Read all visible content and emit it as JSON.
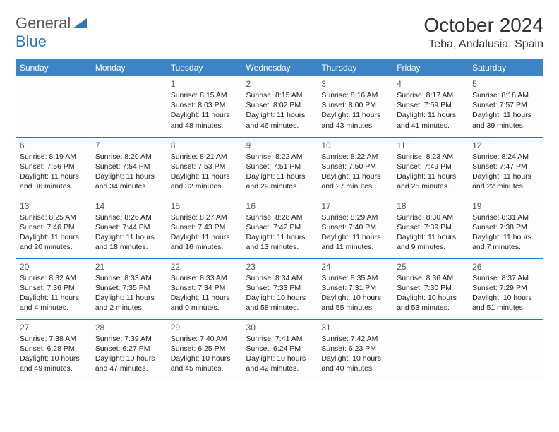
{
  "brand": {
    "part1": "General",
    "part2": "Blue"
  },
  "title": "October 2024",
  "location": "Teba, Andalusia, Spain",
  "colors": {
    "header_bg": "#3c84c6",
    "header_text": "#ffffff",
    "rule": "#2f77b8",
    "brand_gray": "#5a5a5a",
    "brand_blue": "#2f77b8"
  },
  "dayNames": [
    "Sunday",
    "Monday",
    "Tuesday",
    "Wednesday",
    "Thursday",
    "Friday",
    "Saturday"
  ],
  "weeks": [
    [
      null,
      null,
      {
        "n": "1",
        "sr": "8:15 AM",
        "ss": "8:03 PM",
        "dl": "11 hours and 48 minutes."
      },
      {
        "n": "2",
        "sr": "8:15 AM",
        "ss": "8:02 PM",
        "dl": "11 hours and 46 minutes."
      },
      {
        "n": "3",
        "sr": "8:16 AM",
        "ss": "8:00 PM",
        "dl": "11 hours and 43 minutes."
      },
      {
        "n": "4",
        "sr": "8:17 AM",
        "ss": "7:59 PM",
        "dl": "11 hours and 41 minutes."
      },
      {
        "n": "5",
        "sr": "8:18 AM",
        "ss": "7:57 PM",
        "dl": "11 hours and 39 minutes."
      }
    ],
    [
      {
        "n": "6",
        "sr": "8:19 AM",
        "ss": "7:56 PM",
        "dl": "11 hours and 36 minutes."
      },
      {
        "n": "7",
        "sr": "8:20 AM",
        "ss": "7:54 PM",
        "dl": "11 hours and 34 minutes."
      },
      {
        "n": "8",
        "sr": "8:21 AM",
        "ss": "7:53 PM",
        "dl": "11 hours and 32 minutes."
      },
      {
        "n": "9",
        "sr": "8:22 AM",
        "ss": "7:51 PM",
        "dl": "11 hours and 29 minutes."
      },
      {
        "n": "10",
        "sr": "8:22 AM",
        "ss": "7:50 PM",
        "dl": "11 hours and 27 minutes."
      },
      {
        "n": "11",
        "sr": "8:23 AM",
        "ss": "7:49 PM",
        "dl": "11 hours and 25 minutes."
      },
      {
        "n": "12",
        "sr": "8:24 AM",
        "ss": "7:47 PM",
        "dl": "11 hours and 22 minutes."
      }
    ],
    [
      {
        "n": "13",
        "sr": "8:25 AM",
        "ss": "7:46 PM",
        "dl": "11 hours and 20 minutes."
      },
      {
        "n": "14",
        "sr": "8:26 AM",
        "ss": "7:44 PM",
        "dl": "11 hours and 18 minutes."
      },
      {
        "n": "15",
        "sr": "8:27 AM",
        "ss": "7:43 PM",
        "dl": "11 hours and 16 minutes."
      },
      {
        "n": "16",
        "sr": "8:28 AM",
        "ss": "7:42 PM",
        "dl": "11 hours and 13 minutes."
      },
      {
        "n": "17",
        "sr": "8:29 AM",
        "ss": "7:40 PM",
        "dl": "11 hours and 11 minutes."
      },
      {
        "n": "18",
        "sr": "8:30 AM",
        "ss": "7:39 PM",
        "dl": "11 hours and 9 minutes."
      },
      {
        "n": "19",
        "sr": "8:31 AM",
        "ss": "7:38 PM",
        "dl": "11 hours and 7 minutes."
      }
    ],
    [
      {
        "n": "20",
        "sr": "8:32 AM",
        "ss": "7:36 PM",
        "dl": "11 hours and 4 minutes."
      },
      {
        "n": "21",
        "sr": "8:33 AM",
        "ss": "7:35 PM",
        "dl": "11 hours and 2 minutes."
      },
      {
        "n": "22",
        "sr": "8:33 AM",
        "ss": "7:34 PM",
        "dl": "11 hours and 0 minutes."
      },
      {
        "n": "23",
        "sr": "8:34 AM",
        "ss": "7:33 PM",
        "dl": "10 hours and 58 minutes."
      },
      {
        "n": "24",
        "sr": "8:35 AM",
        "ss": "7:31 PM",
        "dl": "10 hours and 55 minutes."
      },
      {
        "n": "25",
        "sr": "8:36 AM",
        "ss": "7:30 PM",
        "dl": "10 hours and 53 minutes."
      },
      {
        "n": "26",
        "sr": "8:37 AM",
        "ss": "7:29 PM",
        "dl": "10 hours and 51 minutes."
      }
    ],
    [
      {
        "n": "27",
        "sr": "7:38 AM",
        "ss": "6:28 PM",
        "dl": "10 hours and 49 minutes."
      },
      {
        "n": "28",
        "sr": "7:39 AM",
        "ss": "6:27 PM",
        "dl": "10 hours and 47 minutes."
      },
      {
        "n": "29",
        "sr": "7:40 AM",
        "ss": "6:25 PM",
        "dl": "10 hours and 45 minutes."
      },
      {
        "n": "30",
        "sr": "7:41 AM",
        "ss": "6:24 PM",
        "dl": "10 hours and 42 minutes."
      },
      {
        "n": "31",
        "sr": "7:42 AM",
        "ss": "6:23 PM",
        "dl": "10 hours and 40 minutes."
      },
      null,
      null
    ]
  ],
  "labels": {
    "sunrise": "Sunrise:",
    "sunset": "Sunset:",
    "daylight": "Daylight:"
  }
}
